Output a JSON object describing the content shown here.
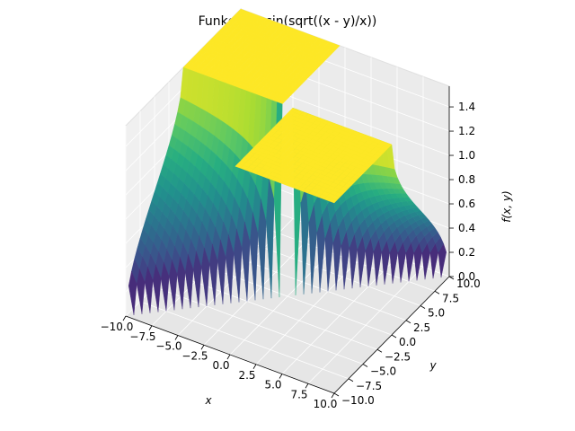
{
  "chart_data": {
    "type": "surface3d",
    "title": "Funkcija: asin(sqrt((x - y)/x))",
    "function": "asin(sqrt((x - y)/x))",
    "xlabel": "x",
    "ylabel": "y",
    "zlabel": "f(x, y)",
    "xlim": [
      -10,
      10
    ],
    "ylim": [
      -10,
      10
    ],
    "zlim": [
      0,
      1.5708
    ],
    "x_ticks": [
      "−10.0",
      "−7.5",
      "−5.0",
      "−2.5",
      "0.0",
      "2.5",
      "5.0",
      "7.5",
      "10.0"
    ],
    "y_ticks": [
      "−10.0",
      "−7.5",
      "−5.0",
      "−2.5",
      "0.0",
      "2.5",
      "5.0",
      "7.5",
      "10.0"
    ],
    "z_ticks": [
      "0.0",
      "0.2",
      "0.4",
      "0.6",
      "0.8",
      "1.0",
      "1.2",
      "1.4"
    ],
    "colormap": "viridis",
    "grid": true
  }
}
